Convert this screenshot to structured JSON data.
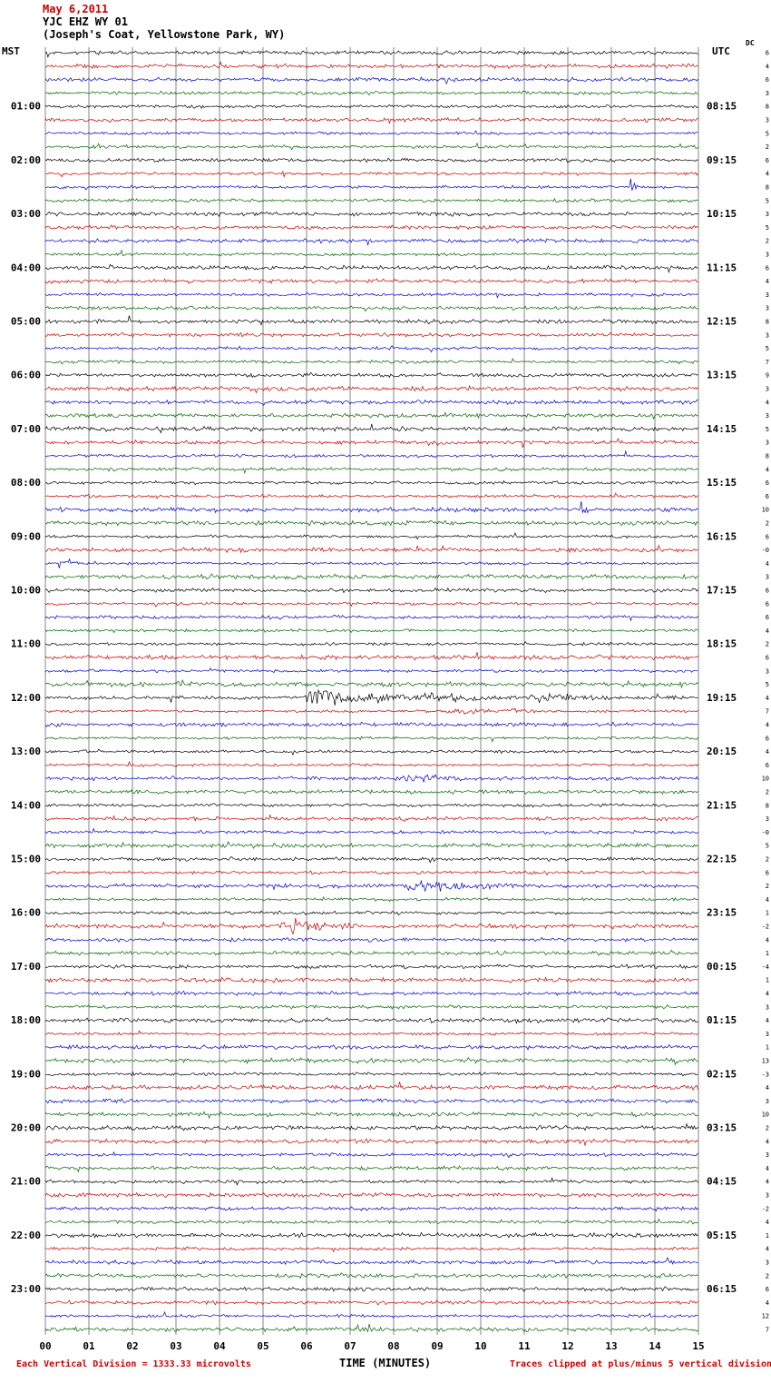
{
  "header": {
    "date": "May 6,2011",
    "station": "YJC EHZ WY 01",
    "location": "(Joseph's Coat, Yellowstone Park, WY)",
    "left_axis": "MST",
    "right_axis": "UTC",
    "dc_label": "DC"
  },
  "footer": {
    "scale_note": "Each Vertical Division = 1333.33 microvolts",
    "clip_note": "Traces clipped at plus/minus 5 vertical divisions"
  },
  "chart_data": {
    "type": "line",
    "subtype": "helicorder-seismogram",
    "xlabel": "TIME (MINUTES)",
    "x_range_minutes": [
      0,
      15
    ],
    "x_ticks": [
      "00",
      "01",
      "02",
      "03",
      "04",
      "05",
      "06",
      "07",
      "08",
      "09",
      "10",
      "11",
      "12",
      "13",
      "14",
      "15"
    ],
    "rows": 96,
    "minutes_per_row": 15,
    "row_color_cycle": [
      "#000000",
      "#cc0000",
      "#0000cc",
      "#006600"
    ],
    "left_hour_labels": [
      "01:00",
      "02:00",
      "03:00",
      "04:00",
      "05:00",
      "06:00",
      "07:00",
      "08:00",
      "09:00",
      "10:00",
      "11:00",
      "12:00",
      "13:00",
      "14:00",
      "15:00",
      "16:00",
      "17:00",
      "18:00",
      "19:00",
      "20:00",
      "21:00",
      "22:00",
      "23:00"
    ],
    "right_hour_labels": [
      "08:15",
      "09:15",
      "10:15",
      "11:15",
      "12:15",
      "13:15",
      "14:15",
      "15:15",
      "16:15",
      "17:15",
      "18:15",
      "19:15",
      "20:15",
      "21:15",
      "22:15",
      "23:15",
      "00:15",
      "01:15",
      "02:15",
      "03:15",
      "04:15",
      "05:15",
      "06:15"
    ],
    "dc_values": [
      "6",
      "4",
      "6",
      "3",
      "8",
      "3",
      "5",
      "2",
      "6",
      "4",
      "8",
      "5",
      "3",
      "5",
      "2",
      "3",
      "6",
      "4",
      "3",
      "3",
      "8",
      "3",
      "5",
      "7",
      "9",
      "3",
      "4",
      "3",
      "5",
      "3",
      "8",
      "4",
      "6",
      "6",
      "10",
      "2",
      "6",
      "-0",
      "4",
      "3",
      "6",
      "6",
      "6",
      "4",
      "2",
      "6",
      "3",
      "5",
      "4",
      "7",
      "4",
      "6",
      "4",
      "6",
      "10",
      "2",
      "8",
      "3",
      "-0",
      "5",
      "2",
      "6",
      "2",
      "4",
      "1",
      "-2",
      "4",
      "1",
      "-4",
      "1",
      "4",
      "3",
      "4",
      "3",
      "1",
      "13",
      "-3",
      "4",
      "3",
      "10",
      "2",
      "4",
      "3",
      "4",
      "4",
      "3",
      "-2",
      "4",
      "1",
      "4",
      "3",
      "2",
      "6",
      "4",
      "12",
      "7"
    ],
    "events": [
      {
        "row": 10,
        "start": 13.42,
        "end": 13.62,
        "amp": 9.0,
        "note": "impulsive spike 02:30 MST trace"
      },
      {
        "row": 34,
        "start": 12.3,
        "end": 12.5,
        "amp": 5.0,
        "note": "small spike 08:30 MST trace"
      },
      {
        "row": 38,
        "start": 0.25,
        "end": 1.35,
        "amp": 2.8,
        "note": "small local event 09:30 MST trace"
      },
      {
        "row": 47,
        "start": 2.9,
        "end": 4.7,
        "amp": 0.9,
        "note": "faint tremor 11:45 MST trace"
      },
      {
        "row": 48,
        "start": 5.95,
        "end": 8.3,
        "amp": 7.0,
        "note": "large clipped event onset 12:00 MST trace"
      },
      {
        "row": 48,
        "start": 8.3,
        "end": 13.3,
        "amp": 1.8,
        "note": "coda of 12:00 event"
      },
      {
        "row": 48,
        "start": 11.3,
        "end": 12.1,
        "amp": 2.5,
        "note": "aftershock burst 12:00 trace"
      },
      {
        "row": 49,
        "start": 9.2,
        "end": 11.4,
        "amp": 3.2,
        "note": "event 12:15 MST trace"
      },
      {
        "row": 54,
        "start": 7.95,
        "end": 9.9,
        "amp": 2.8,
        "note": "event 13:30 MST trace"
      },
      {
        "row": 62,
        "start": 8.2,
        "end": 10.7,
        "amp": 3.6,
        "note": "event 15:30 MST trace"
      },
      {
        "row": 65,
        "start": 5.35,
        "end": 7.2,
        "amp": 3.6,
        "note": "event 16:15 MST trace"
      }
    ]
  }
}
